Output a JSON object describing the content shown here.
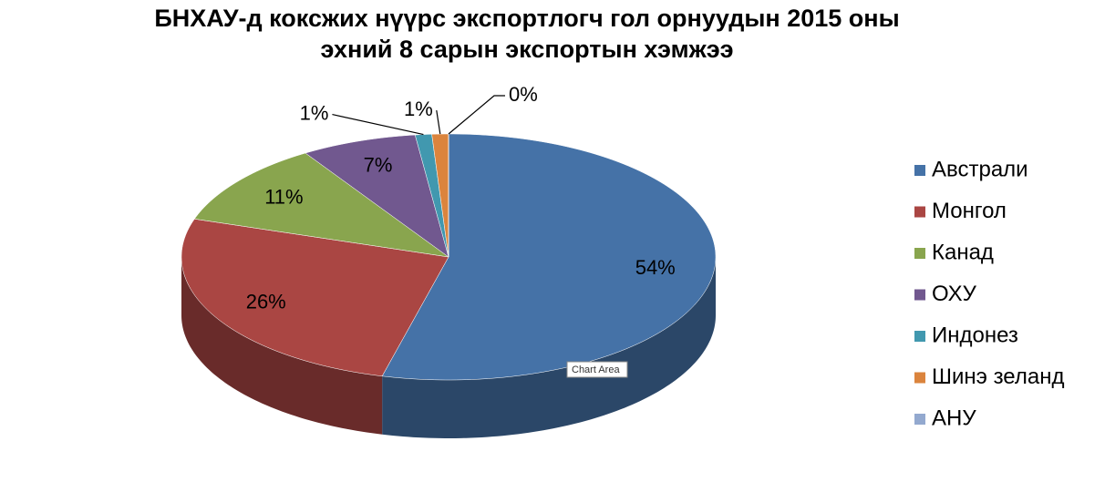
{
  "chart_data": {
    "type": "pie",
    "title": [
      "БНХАУ-д коксжих нүүрс экспортлогч гол орнуудын 2015 оны",
      "эхний 8 сарын экспортын хэмжээ"
    ],
    "categories": [
      "Австрали",
      "Монгол",
      "Канад",
      "ОХУ",
      "Индонез",
      "Шинэ зеланд",
      "АНУ"
    ],
    "values": [
      54,
      26,
      11,
      7,
      1,
      1,
      0
    ],
    "value_labels": [
      "54%",
      "26%",
      "11%",
      "7%",
      "1%",
      "1%",
      "0%"
    ],
    "colors": [
      "#4572a7",
      "#aa4643",
      "#89a54e",
      "#71588f",
      "#4198af",
      "#db843d",
      "#93a9cf"
    ],
    "legend": "right",
    "tooltip": "Chart Area"
  }
}
